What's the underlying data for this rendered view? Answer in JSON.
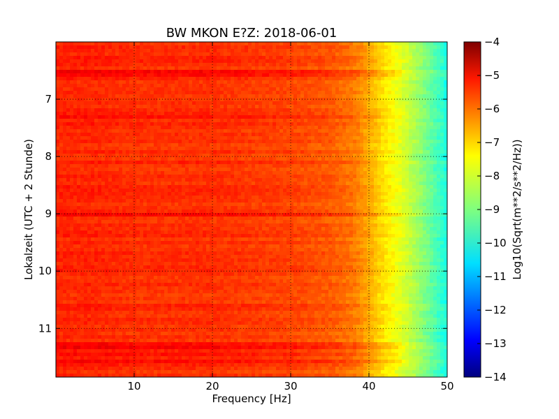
{
  "chart_data": {
    "type": "heatmap",
    "title": "BW MKON E?Z: 2018-06-01",
    "xlabel": "Frequency [Hz]",
    "ylabel": "Lokalzeit (UTC + 2 Stunde)",
    "xlim": [
      0,
      50
    ],
    "ylim": [
      6.0,
      11.85
    ],
    "y_inverted": true,
    "x_ticks": [
      10,
      20,
      30,
      40,
      50
    ],
    "y_ticks": [
      7,
      8,
      9,
      10,
      11
    ],
    "grid": true,
    "colormap": "jet",
    "colorbar": {
      "label": "Log10(Sqrt(m**2/s**2/Hz))",
      "range": [
        -14,
        -4
      ],
      "ticks": [
        -4,
        -5,
        -6,
        -7,
        -8,
        -9,
        -10,
        -11,
        -12,
        -13,
        -14
      ]
    },
    "spectrum_profile": {
      "frequency_hz": [
        0,
        5,
        10,
        15,
        20,
        25,
        30,
        35,
        38,
        40,
        42,
        44,
        46,
        48,
        50
      ],
      "log10_amplitude": [
        -5.6,
        -5.6,
        -5.7,
        -5.7,
        -5.7,
        -5.8,
        -5.9,
        -6.1,
        -6.4,
        -6.9,
        -7.5,
        -8.0,
        -8.6,
        -9.3,
        -10.0
      ]
    },
    "strong_bands_time": [
      6.55,
      7.3,
      9.0,
      11.3,
      11.45,
      11.58
    ],
    "colors": {
      "background": "#ffffff",
      "grid": "#000000"
    }
  }
}
